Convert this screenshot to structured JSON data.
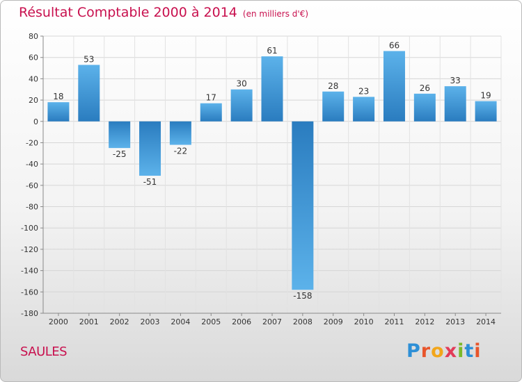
{
  "header": {
    "title": "Résultat Comptable 2000 à 2014",
    "subtitle": "(en milliers d'€)"
  },
  "footer": {
    "place": "SAULES",
    "brand": "Proxiti",
    "brand_letters": [
      "P",
      "r",
      "o",
      "x",
      "i",
      "t",
      "i"
    ],
    "brand_colors": [
      "#2d8fd6",
      "#e8552b",
      "#f2a61b",
      "#e23b58",
      "#7cb92a",
      "#2d8fd6",
      "#e8552b"
    ]
  },
  "colors": {
    "title": "#c8104e",
    "bar_light": "#5cb2ea",
    "bar_dark": "#2a7cbf",
    "grid": "#d5d5d5"
  },
  "chart_data": {
    "type": "bar",
    "title": "Résultat Comptable 2000 à 2014",
    "categories": [
      "2000",
      "2001",
      "2002",
      "2003",
      "2004",
      "2005",
      "2006",
      "2007",
      "2008",
      "2009",
      "2010",
      "2011",
      "2012",
      "2013",
      "2014"
    ],
    "values": [
      18,
      53,
      -25,
      -51,
      -22,
      17,
      30,
      61,
      -158,
      28,
      23,
      66,
      26,
      33,
      19
    ],
    "ylim": [
      -180,
      80
    ],
    "yticks": [
      80,
      60,
      40,
      20,
      0,
      -20,
      -40,
      -60,
      -80,
      -100,
      -120,
      -140,
      -160,
      -180
    ],
    "grid": true,
    "legend": "none"
  }
}
